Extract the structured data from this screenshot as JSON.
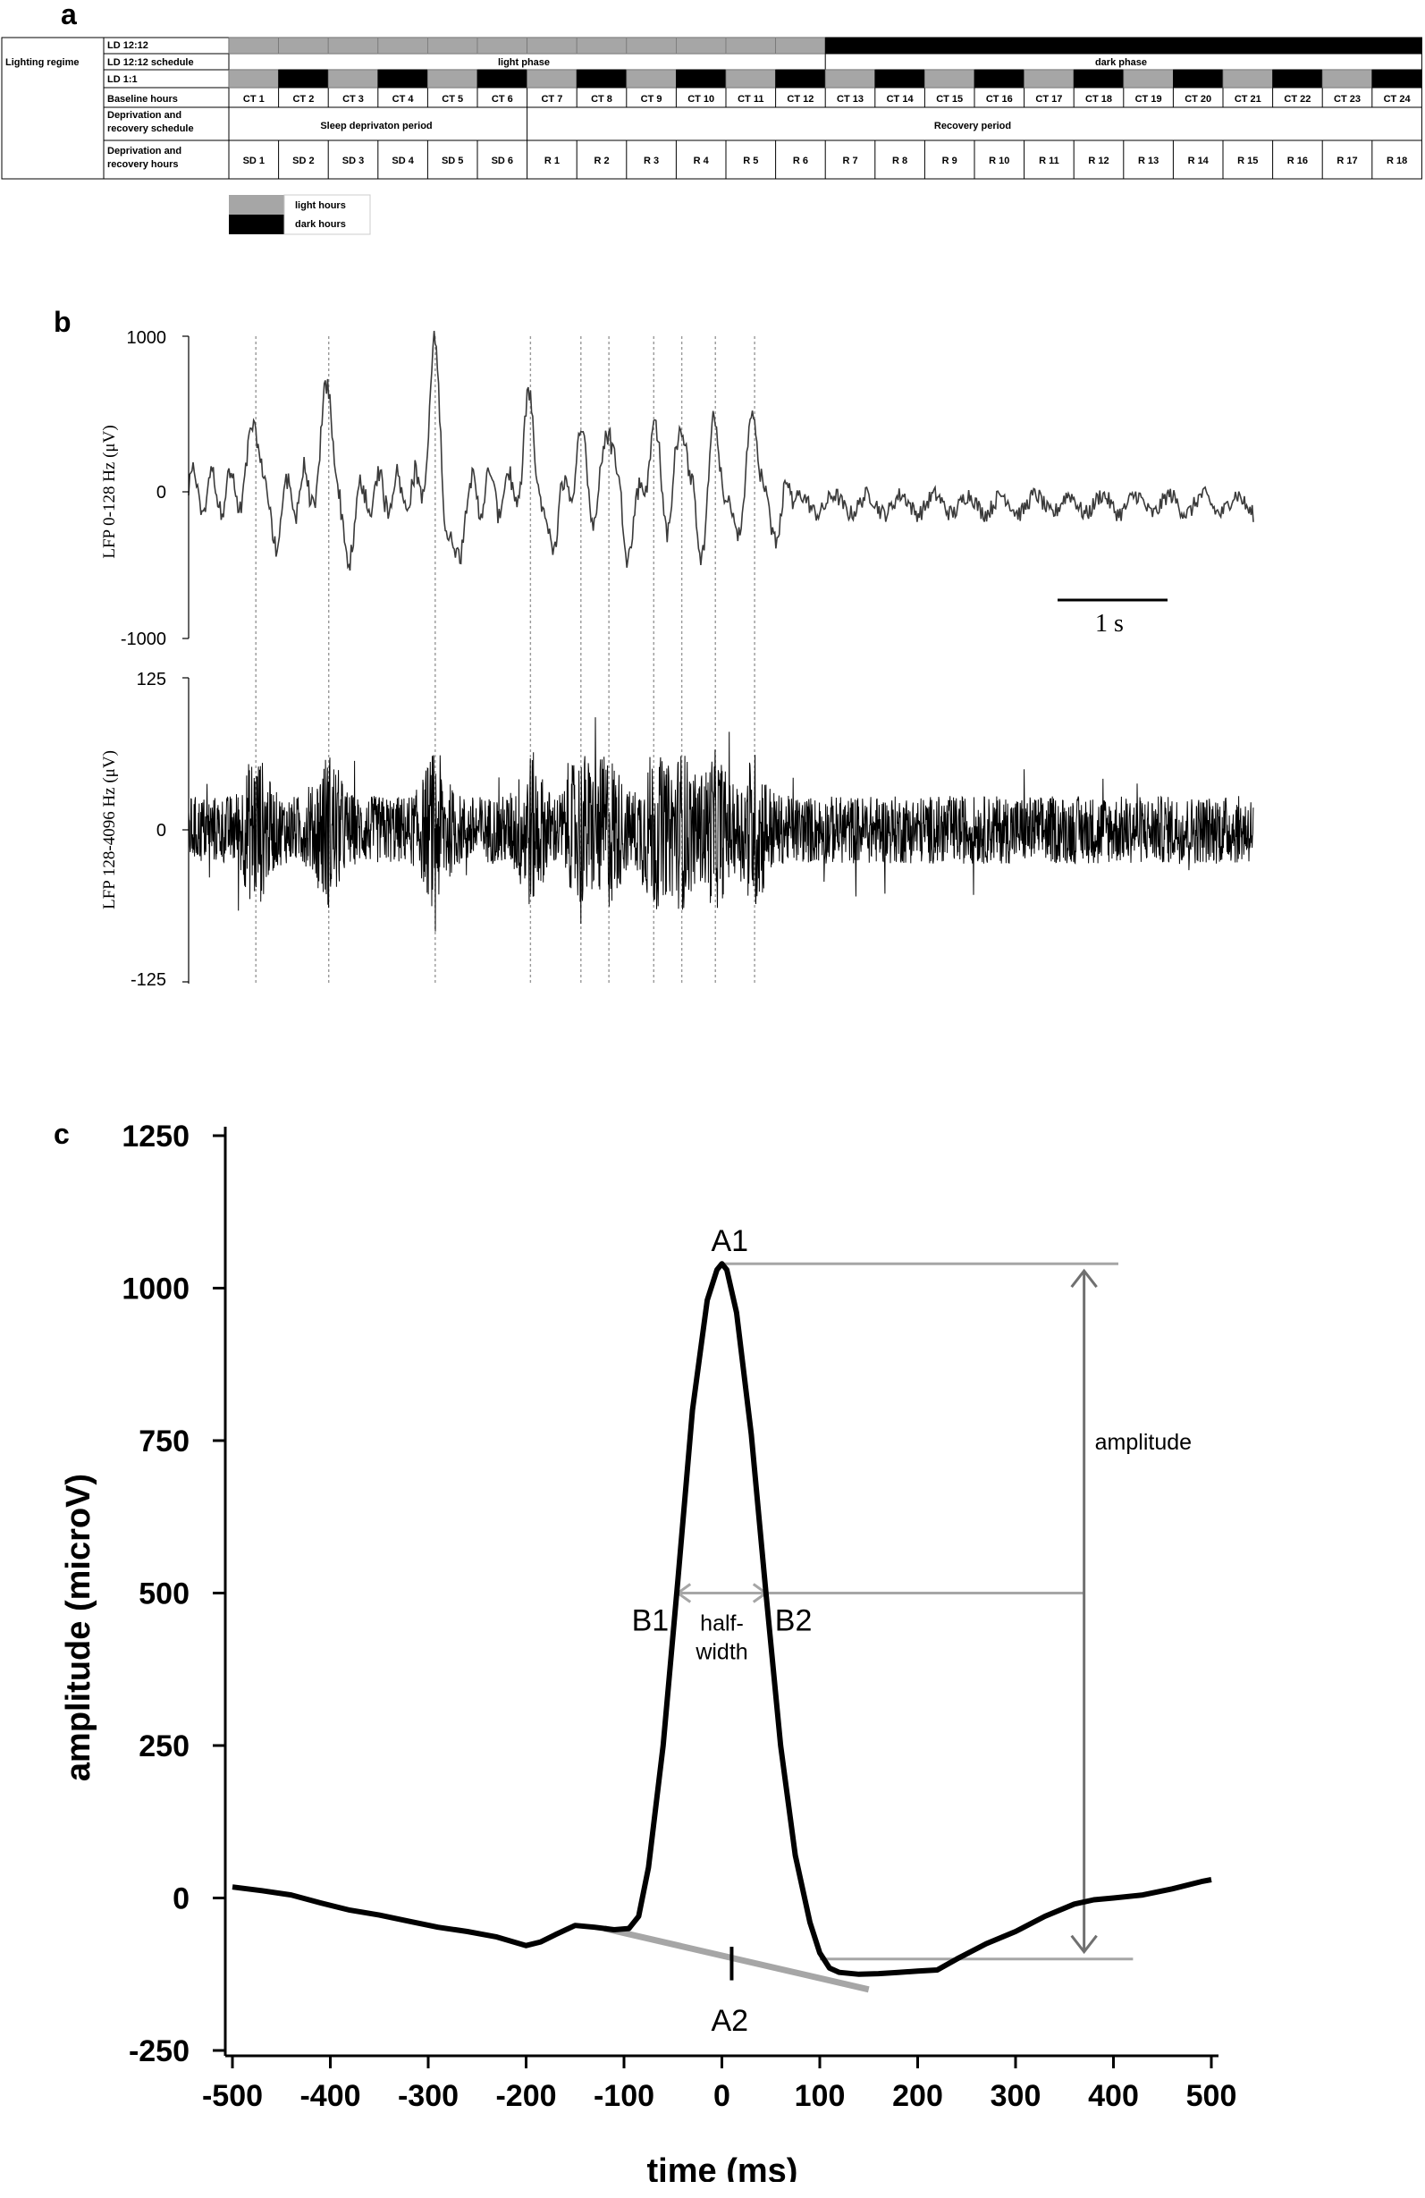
{
  "panel_labels": {
    "a": "a",
    "b": "b",
    "c": "c"
  },
  "panel_a": {
    "row_group_label": "Lighting regime",
    "row_labels": {
      "ld1212": "LD 12:12",
      "ld1212_schedule": "LD 12:12 schedule",
      "ld11": "LD 1:1",
      "baseline": "Baseline hours",
      "deprivation_schedule": "Deprivation and recovery schedule",
      "deprivation_hours": "Deprivation and recovery hours"
    },
    "phase_light": "light phase",
    "phase_dark": "dark phase",
    "baseline_hours": [
      "CT 1",
      "CT 2",
      "CT 3",
      "CT 4",
      "CT 5",
      "CT 6",
      "CT 7",
      "CT 8",
      "CT 9",
      "CT 10",
      "CT 11",
      "CT 12",
      "CT 13",
      "CT 14",
      "CT 15",
      "CT 16",
      "CT 17",
      "CT 18",
      "CT 19",
      "CT 20",
      "CT 21",
      "CT 22",
      "CT 23",
      "CT 24"
    ],
    "sleep_deprivation_period": "Sleep deprivaton period",
    "recovery_period": "Recovery period",
    "deprivation_recovery_hours": [
      "SD 1",
      "SD 2",
      "SD 3",
      "SD 4",
      "SD 5",
      "SD 6",
      "R 1",
      "R 2",
      "R 3",
      "R 4",
      "R 5",
      "R 6",
      "R 7",
      "R 8",
      "R 9",
      "R 10",
      "R 11",
      "R 12",
      "R 13",
      "R 14",
      "R 15",
      "R 16",
      "R 17",
      "R 18"
    ],
    "ld1212_pattern": [
      "light",
      "light",
      "light",
      "light",
      "light",
      "light",
      "light",
      "light",
      "light",
      "light",
      "light",
      "light",
      "dark",
      "dark",
      "dark",
      "dark",
      "dark",
      "dark",
      "dark",
      "dark",
      "dark",
      "dark",
      "dark",
      "dark"
    ],
    "ld11_pattern": [
      "light",
      "dark",
      "light",
      "dark",
      "light",
      "dark",
      "light",
      "dark",
      "light",
      "dark",
      "light",
      "dark",
      "light",
      "dark",
      "light",
      "dark",
      "light",
      "dark",
      "light",
      "dark",
      "light",
      "dark",
      "light",
      "dark"
    ],
    "legend": {
      "light": "light hours",
      "dark": "dark hours"
    },
    "colors": {
      "light": "#a6a6a6",
      "dark": "#000000"
    }
  },
  "panel_b": {
    "top_ylabel": "LFP 0-128 Hz (μV)",
    "top_ticks": [
      "1000",
      "0",
      "-1000"
    ],
    "bottom_ylabel": "LFP 128-4096 Hz (μV)",
    "bottom_ticks": [
      "125",
      "0",
      "-125"
    ],
    "scale_bar_label": "1 s",
    "scale_bar_seconds": 1,
    "sharp_wave_times_s": [
      0.6,
      1.25,
      2.2,
      3.05,
      3.5,
      3.75,
      4.15,
      4.4,
      4.7,
      5.05
    ],
    "trace_duration_s": 9.5
  },
  "chart_data": {
    "type": "line",
    "title": "",
    "xlabel": "time (ms)",
    "ylabel": "amplitude (microV)",
    "xlim": [
      -500,
      500
    ],
    "ylim": [
      -250,
      1250
    ],
    "x_ticks": [
      -500,
      -400,
      -300,
      -200,
      -100,
      0,
      100,
      200,
      300,
      400,
      500
    ],
    "y_ticks": [
      -250,
      0,
      250,
      500,
      750,
      1000,
      1250
    ],
    "series": [
      {
        "x": [
          -500,
          -470,
          -440,
          -410,
          -380,
          -350,
          -320,
          -290,
          -260,
          -230,
          -200,
          -185,
          -170,
          -150,
          -130,
          -110,
          -95,
          -85,
          -75,
          -60,
          -45,
          -30,
          -15,
          -5,
          0,
          5,
          15,
          30,
          45,
          60,
          75,
          90,
          100,
          110,
          120,
          140,
          160,
          180,
          200,
          220,
          240,
          270,
          300,
          330,
          360,
          380,
          400,
          430,
          460,
          490,
          500
        ],
        "y": [
          18,
          12,
          5,
          -8,
          -20,
          -28,
          -38,
          -48,
          -55,
          -64,
          -78,
          -72,
          -60,
          -45,
          -48,
          -52,
          -50,
          -30,
          50,
          250,
          520,
          800,
          980,
          1030,
          1040,
          1030,
          960,
          760,
          500,
          250,
          70,
          -40,
          -90,
          -115,
          -122,
          -125,
          -124,
          -122,
          -120,
          -118,
          -100,
          -75,
          -55,
          -30,
          -10,
          -3,
          0,
          5,
          15,
          27,
          30
        ]
      }
    ],
    "annotations": {
      "peak_label": "A1",
      "trough_label": "A2",
      "halfwidth_left_label": "B1",
      "halfwidth_right_label": "B2",
      "halfwidth_text": [
        "half-",
        "width"
      ],
      "amplitude_text": "amplitude",
      "peak_value": 1040,
      "trough_value": -100,
      "halfwidth_level": 500,
      "halfwidth_start_ms": -45,
      "halfwidth_end_ms": 45,
      "baseline_x": [
        -120,
        150
      ],
      "baseline_y": [
        -50,
        -150
      ],
      "a2_time_ms": 10
    }
  }
}
